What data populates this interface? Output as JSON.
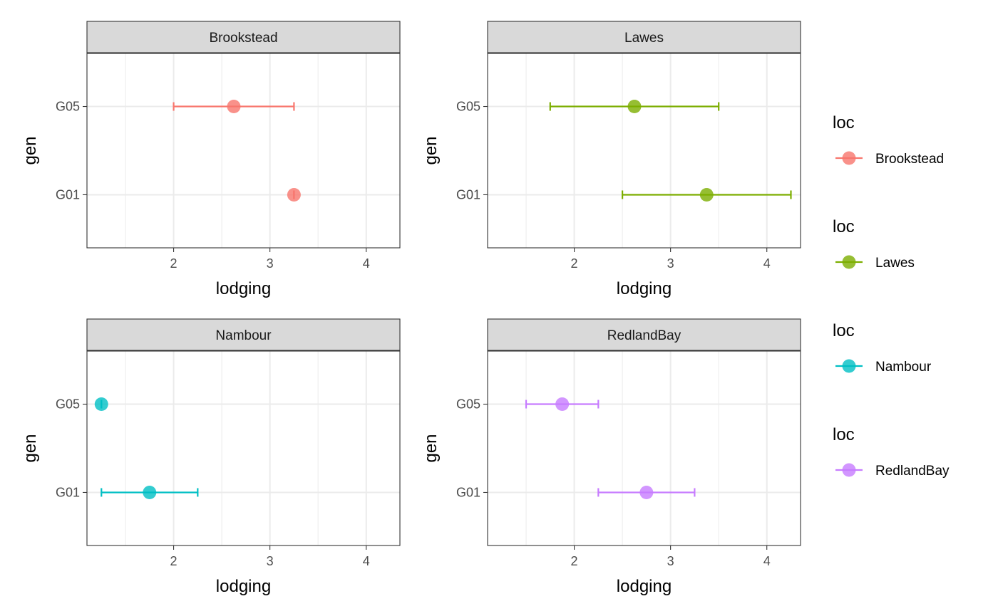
{
  "chart_data": {
    "type": "scatter",
    "subtype": "point-range faceted",
    "xlabel": "lodging",
    "ylabel": "gen",
    "xlim": [
      1.1,
      4.35
    ],
    "x_ticks": [
      2,
      3,
      4
    ],
    "x_minor": [
      1.5,
      2.5,
      3.5
    ],
    "y_categories": [
      "G01",
      "G05"
    ],
    "grid": true,
    "legend_position": "right",
    "facets": [
      {
        "title": "Brookstead",
        "color": "#F8766D",
        "points": [
          {
            "gen": "G05",
            "x": 2.625,
            "low": 2.0,
            "high": 3.25
          },
          {
            "gen": "G01",
            "x": 3.25,
            "low": 3.25,
            "high": 3.25
          }
        ]
      },
      {
        "title": "Lawes",
        "color": "#7CAE00",
        "points": [
          {
            "gen": "G05",
            "x": 2.625,
            "low": 1.75,
            "high": 3.5
          },
          {
            "gen": "G01",
            "x": 3.375,
            "low": 2.5,
            "high": 4.25
          }
        ]
      },
      {
        "title": "Nambour",
        "color": "#00BFC4",
        "points": [
          {
            "gen": "G05",
            "x": 1.25,
            "low": 1.25,
            "high": 1.25
          },
          {
            "gen": "G01",
            "x": 1.75,
            "low": 1.25,
            "high": 2.25
          }
        ]
      },
      {
        "title": "RedlandBay",
        "color": "#C77CFF",
        "points": [
          {
            "gen": "G05",
            "x": 1.875,
            "low": 1.5,
            "high": 2.25
          },
          {
            "gen": "G01",
            "x": 2.75,
            "low": 2.25,
            "high": 3.25
          }
        ]
      }
    ],
    "legends": [
      {
        "title": "loc",
        "label": "Brookstead",
        "color": "#F8766D"
      },
      {
        "title": "loc",
        "label": "Lawes",
        "color": "#7CAE00"
      },
      {
        "title": "loc",
        "label": "Nambour",
        "color": "#00BFC4"
      },
      {
        "title": "loc",
        "label": "RedlandBay",
        "color": "#C77CFF"
      }
    ]
  }
}
